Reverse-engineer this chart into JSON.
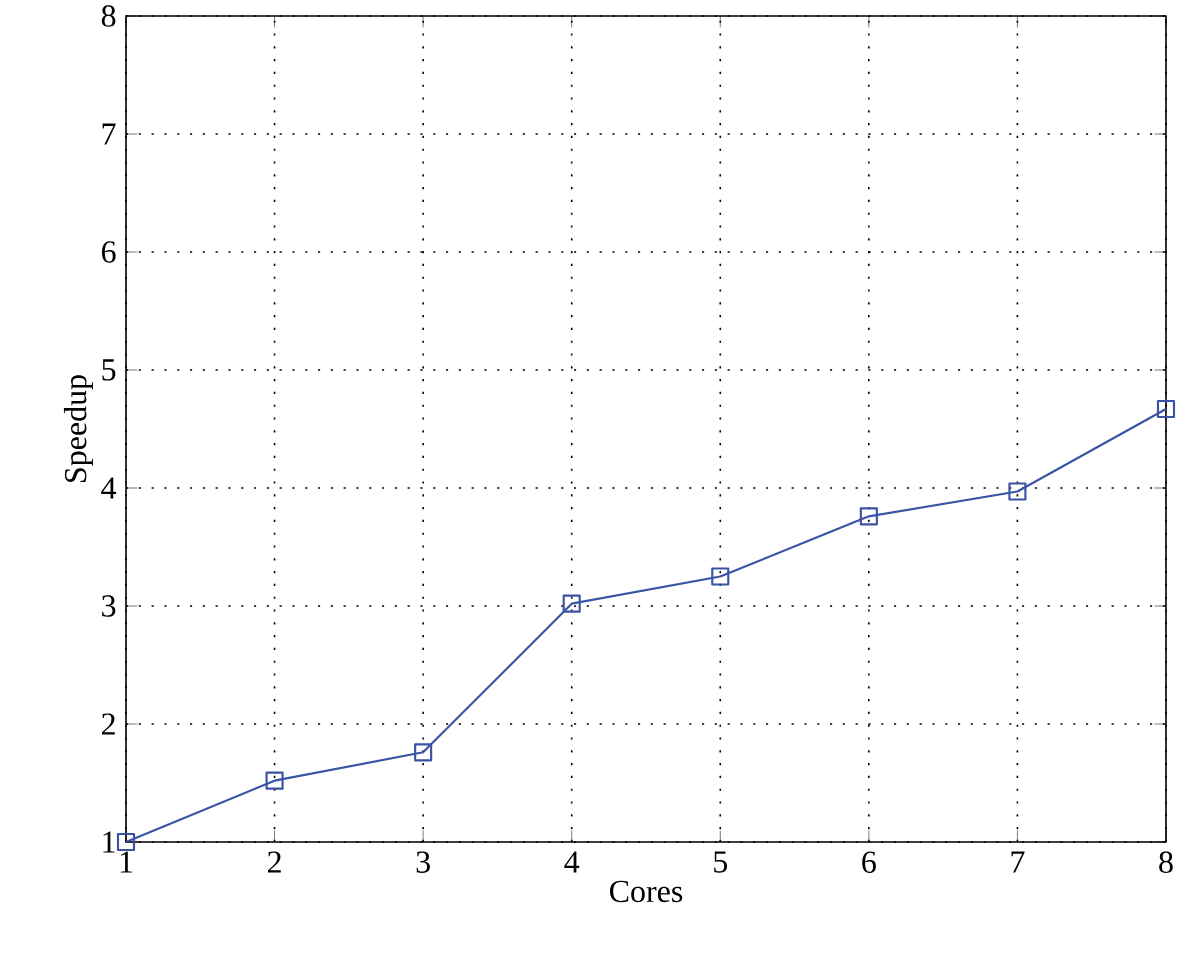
{
  "chart_data": {
    "type": "line",
    "xlabel": "Cores",
    "ylabel": "Speedup",
    "x": [
      1,
      2,
      3,
      4,
      5,
      6,
      7,
      8
    ],
    "series": [
      {
        "color": "#3a53a4",
        "values": [
          1,
          1.52,
          1.76,
          3.02,
          3.25,
          3.76,
          3.97,
          4.67
        ]
      }
    ],
    "xlim": [
      1,
      8
    ],
    "ylim": [
      1,
      8
    ],
    "xticks": [
      1,
      2,
      3,
      4,
      5,
      6,
      7,
      8
    ],
    "yticks": [
      1,
      2,
      3,
      4,
      5,
      6,
      7,
      8
    ],
    "grid": true,
    "marker": "square",
    "line_style": "solid"
  }
}
